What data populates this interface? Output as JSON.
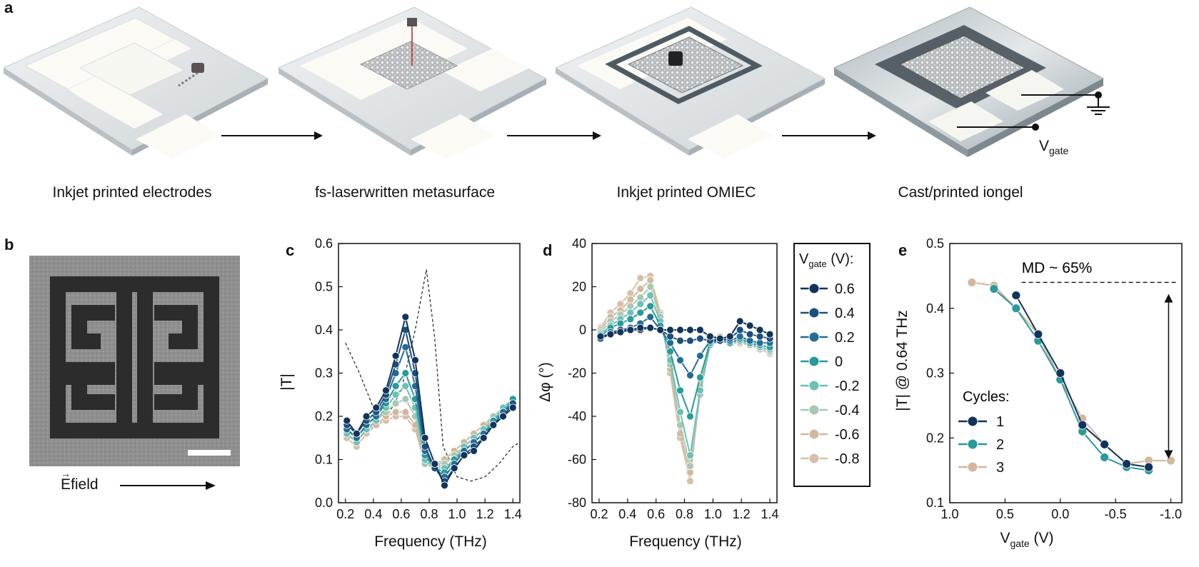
{
  "panel_a": {
    "label": "a",
    "steps": [
      {
        "caption": "Inkjet printed electrodes"
      },
      {
        "caption": "fs-laserwritten metasurface"
      },
      {
        "caption": "Inkjet printed OMIEC"
      },
      {
        "caption": "Cast/printed iongel"
      }
    ],
    "vgate_label": "V",
    "vgate_sub": "gate"
  },
  "panel_b": {
    "label": "b",
    "efield_label": "E",
    "efield_suffix": "field"
  },
  "colors": {
    "0.6": "#12335c",
    "0.4": "#1c4f7d",
    "0.2": "#236d95",
    "0": "#2a9a9a",
    "-0.2": "#6cc0b4",
    "-0.4": "#a8c7b4",
    "-0.6": "#d3b89d",
    "-0.8": "#d6c0aa"
  },
  "legend": {
    "title": "V",
    "title_sub": "gate",
    "title_suffix": " (V):",
    "entries": [
      "0.6",
      "0.4",
      "0.2",
      "0",
      "-0.2",
      "-0.4",
      "-0.6",
      "-0.8"
    ]
  },
  "chart_data": [
    {
      "panel": "c",
      "type": "line",
      "xlabel": "Frequency (THz)",
      "ylabel": "|T|",
      "xlim": [
        0.15,
        1.45
      ],
      "ylim": [
        0.0,
        0.6
      ],
      "xticks": [
        "0.2",
        "0.4",
        "0.6",
        "0.8",
        "1.0",
        "1.2",
        "1.4"
      ],
      "yticks": [
        "0.0",
        "0.1",
        "0.2",
        "0.3",
        "0.4",
        "0.5",
        "0.6"
      ],
      "x": [
        0.21,
        0.28,
        0.35,
        0.42,
        0.49,
        0.56,
        0.63,
        0.7,
        0.77,
        0.84,
        0.91,
        0.98,
        1.05,
        1.12,
        1.19,
        1.26,
        1.33,
        1.4
      ],
      "series": [
        {
          "name": "0.6",
          "values": [
            0.19,
            0.16,
            0.2,
            0.22,
            0.26,
            0.34,
            0.43,
            0.33,
            0.15,
            0.09,
            0.04,
            0.08,
            0.11,
            0.12,
            0.15,
            0.18,
            0.2,
            0.22
          ]
        },
        {
          "name": "0.4",
          "values": [
            0.18,
            0.16,
            0.19,
            0.21,
            0.25,
            0.32,
            0.4,
            0.3,
            0.13,
            0.08,
            0.05,
            0.08,
            0.11,
            0.13,
            0.15,
            0.18,
            0.2,
            0.23
          ]
        },
        {
          "name": "0.2",
          "values": [
            0.17,
            0.15,
            0.18,
            0.2,
            0.24,
            0.3,
            0.36,
            0.27,
            0.12,
            0.08,
            0.06,
            0.09,
            0.12,
            0.14,
            0.16,
            0.18,
            0.21,
            0.23
          ]
        },
        {
          "name": "0",
          "values": [
            0.17,
            0.15,
            0.18,
            0.2,
            0.23,
            0.27,
            0.3,
            0.24,
            0.11,
            0.08,
            0.07,
            0.1,
            0.12,
            0.14,
            0.16,
            0.19,
            0.21,
            0.24
          ]
        },
        {
          "name": "-0.2",
          "values": [
            0.16,
            0.14,
            0.17,
            0.19,
            0.22,
            0.25,
            0.27,
            0.22,
            0.1,
            0.08,
            0.08,
            0.1,
            0.13,
            0.15,
            0.17,
            0.19,
            0.22,
            0.24
          ]
        },
        {
          "name": "-0.4",
          "values": [
            0.16,
            0.14,
            0.17,
            0.19,
            0.21,
            0.23,
            0.24,
            0.2,
            0.09,
            0.08,
            0.09,
            0.11,
            0.13,
            0.15,
            0.17,
            0.2,
            0.22,
            0.24
          ]
        },
        {
          "name": "-0.6",
          "values": [
            0.16,
            0.14,
            0.17,
            0.18,
            0.2,
            0.21,
            0.21,
            0.18,
            0.09,
            0.08,
            0.1,
            0.12,
            0.14,
            0.16,
            0.18,
            0.2,
            0.22,
            0.24
          ]
        },
        {
          "name": "-0.8",
          "values": [
            0.15,
            0.13,
            0.16,
            0.18,
            0.19,
            0.2,
            0.2,
            0.17,
            0.09,
            0.09,
            0.1,
            0.12,
            0.14,
            0.16,
            0.18,
            0.2,
            0.22,
            0.24
          ]
        }
      ],
      "reference": {
        "name": "dashed",
        "x": [
          0.2,
          0.3,
          0.4,
          0.5,
          0.6,
          0.7,
          0.78,
          0.84,
          0.9,
          1.0,
          1.1,
          1.2,
          1.3,
          1.4,
          1.45
        ],
        "values": [
          0.37,
          0.3,
          0.22,
          0.2,
          0.26,
          0.4,
          0.54,
          0.38,
          0.13,
          0.06,
          0.05,
          0.06,
          0.09,
          0.13,
          0.14
        ]
      }
    },
    {
      "panel": "d",
      "type": "line",
      "xlabel": "Frequency (THz)",
      "ylabel": "Δφ (°)",
      "xlim": [
        0.15,
        1.45
      ],
      "ylim": [
        -80,
        40
      ],
      "xticks": [
        "0.2",
        "0.4",
        "0.6",
        "0.8",
        "1.0",
        "1.2",
        "1.4"
      ],
      "yticks": [
        "-80",
        "-60",
        "-40",
        "-20",
        "0",
        "20",
        "40"
      ],
      "x": [
        0.21,
        0.28,
        0.35,
        0.42,
        0.49,
        0.56,
        0.63,
        0.7,
        0.77,
        0.84,
        0.91,
        0.98,
        1.05,
        1.12,
        1.19,
        1.26,
        1.33,
        1.4
      ],
      "series": [
        {
          "name": "0.6",
          "values": [
            -3,
            -2,
            -1,
            0,
            1,
            1,
            0,
            0,
            0,
            0,
            0,
            -3,
            -4,
            -3,
            4,
            2,
            0,
            -2
          ]
        },
        {
          "name": "0.4",
          "values": [
            -4,
            -2,
            0,
            0,
            0,
            1,
            0,
            -3,
            -5,
            -5,
            -4,
            -5,
            -5,
            -4,
            0,
            -2,
            -3,
            -4
          ]
        },
        {
          "name": "0.2",
          "values": [
            -4,
            -1,
            0,
            1,
            3,
            6,
            0,
            -6,
            -14,
            -21,
            -12,
            -5,
            -4,
            -5,
            -3,
            -5,
            -6,
            -6
          ]
        },
        {
          "name": "0",
          "values": [
            -3,
            1,
            3,
            5,
            8,
            11,
            2,
            -10,
            -28,
            -40,
            -22,
            -6,
            -5,
            -6,
            -4,
            -6,
            -7,
            -8
          ]
        },
        {
          "name": "-0.2",
          "values": [
            -2,
            2,
            5,
            8,
            12,
            16,
            4,
            -14,
            -38,
            -58,
            -28,
            -7,
            -5,
            -6,
            -5,
            -6,
            -8,
            -9
          ]
        },
        {
          "name": "-0.4",
          "values": [
            -1,
            4,
            7,
            11,
            15,
            20,
            6,
            -16,
            -44,
            -63,
            -30,
            -6,
            -5,
            -6,
            -5,
            -7,
            -8,
            -10
          ]
        },
        {
          "name": "-0.6",
          "values": [
            0,
            6,
            9,
            14,
            19,
            23,
            7,
            -18,
            -48,
            -66,
            -29,
            -5,
            -4,
            -6,
            -6,
            -7,
            -8,
            -10
          ]
        },
        {
          "name": "-0.8",
          "values": [
            1,
            8,
            12,
            17,
            24,
            25,
            8,
            -20,
            -50,
            -70,
            -26,
            -3,
            -3,
            -5,
            -6,
            -7,
            -9,
            -11
          ]
        }
      ]
    },
    {
      "panel": "e",
      "type": "line",
      "xlabel": "V",
      "xlabel_sub": "gate",
      "xlabel_suffix": " (V)",
      "ylabel": "|T| @ 0.64 THz",
      "xlim": [
        1.0,
        -1.1
      ],
      "ylim": [
        0.1,
        0.5
      ],
      "xticks": [
        "1.0",
        "0.5",
        "0.0",
        "-0.5",
        "-1.0"
      ],
      "yticks": [
        "0.1",
        "0.2",
        "0.3",
        "0.4",
        "0.5"
      ],
      "annotation": "MD ~ 65%",
      "legend_title": "Cycles:",
      "series": [
        {
          "name": "1",
          "color": "#12335c",
          "x": [
            0.4,
            0.2,
            0.0,
            -0.2,
            -0.4,
            -0.6,
            -0.8
          ],
          "values": [
            0.42,
            0.36,
            0.3,
            0.22,
            0.19,
            0.16,
            0.155
          ]
        },
        {
          "name": "2",
          "color": "#2a9a9a",
          "x": [
            0.6,
            0.4,
            0.2,
            0.0,
            -0.2,
            -0.4,
            -0.6,
            -0.8
          ],
          "values": [
            0.43,
            0.4,
            0.35,
            0.29,
            0.21,
            0.17,
            0.155,
            0.15
          ]
        },
        {
          "name": "3",
          "color": "#d3b89d",
          "x": [
            0.8,
            0.6,
            0.4,
            0.2,
            0.0,
            -0.2,
            -0.4,
            -0.6,
            -0.8,
            -1.0
          ],
          "values": [
            0.44,
            0.435,
            0.4,
            0.36,
            0.29,
            0.23,
            0.19,
            0.16,
            0.165,
            0.165
          ]
        }
      ]
    }
  ]
}
